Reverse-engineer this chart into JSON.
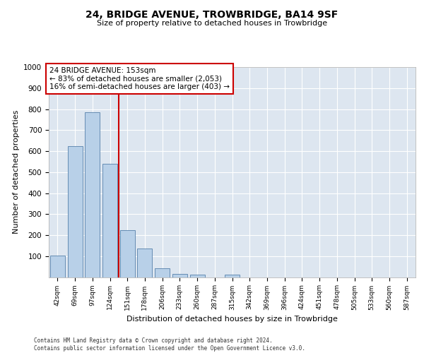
{
  "title": "24, BRIDGE AVENUE, TROWBRIDGE, BA14 9SF",
  "subtitle": "Size of property relative to detached houses in Trowbridge",
  "xlabel": "Distribution of detached houses by size in Trowbridge",
  "ylabel": "Number of detached properties",
  "categories": [
    "42sqm",
    "69sqm",
    "97sqm",
    "124sqm",
    "151sqm",
    "178sqm",
    "206sqm",
    "233sqm",
    "260sqm",
    "287sqm",
    "315sqm",
    "342sqm",
    "369sqm",
    "396sqm",
    "424sqm",
    "451sqm",
    "478sqm",
    "505sqm",
    "533sqm",
    "560sqm",
    "587sqm"
  ],
  "values": [
    103,
    625,
    785,
    540,
    222,
    135,
    43,
    16,
    11,
    0,
    11,
    0,
    0,
    0,
    0,
    0,
    0,
    0,
    0,
    0,
    0
  ],
  "bar_color": "#b8d0e8",
  "bar_edge_color": "#5580aa",
  "vline_x": 3.5,
  "vline_color": "#cc0000",
  "annotation_text": "24 BRIDGE AVENUE: 153sqm\n← 83% of detached houses are smaller (2,053)\n16% of semi-detached houses are larger (403) →",
  "annotation_box_color": "#ffffff",
  "annotation_box_edge_color": "#cc0000",
  "ylim": [
    0,
    1000
  ],
  "yticks": [
    0,
    100,
    200,
    300,
    400,
    500,
    600,
    700,
    800,
    900,
    1000
  ],
  "background_color": "#dde6f0",
  "grid_color": "#ffffff",
  "footer_line1": "Contains HM Land Registry data © Crown copyright and database right 2024.",
  "footer_line2": "Contains public sector information licensed under the Open Government Licence v3.0."
}
